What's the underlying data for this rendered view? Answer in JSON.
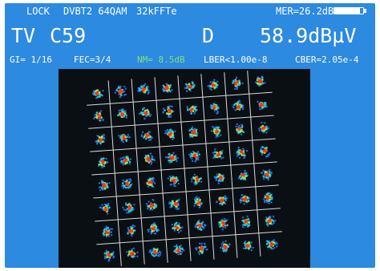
{
  "status": {
    "lock": "LOCK",
    "standard_modulation": "DVBT2 64QAM",
    "fft": "32kFFTe",
    "mer": "MER=26.2dB",
    "battery_level": 0.88
  },
  "channel": {
    "band": "TV",
    "channel": "C59",
    "polarity": "D",
    "level": "58.9dBµV"
  },
  "params": {
    "gi": "GI= 1/16",
    "fec": "FEC=3/4",
    "nm": "NM= 8.5dB",
    "lber": "LBER<1.00e-8",
    "cber": "CBER=2.05e-4"
  },
  "constellation": {
    "modulation_order": 64,
    "grid_size": 8,
    "colors": {
      "background": "#0a0f14",
      "grid": "#d8d8d8",
      "outer": "#1e6fe0",
      "mid": "#1ec8d8",
      "inner": "#9be34a",
      "core": "#ff3020"
    }
  },
  "colors": {
    "screen": "#2c8ae0",
    "text": "#ffffff",
    "nm_text": "#7fe07a"
  }
}
